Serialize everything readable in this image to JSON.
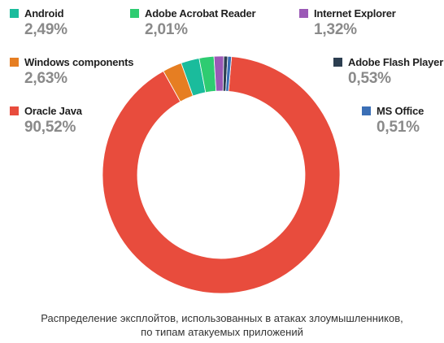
{
  "chart_data": {
    "type": "pie",
    "donut": true,
    "categories": [
      "Oracle Java",
      "Windows components",
      "Android",
      "Adobe Acrobat Reader",
      "Internet Explorer",
      "Adobe Flash Player",
      "MS Office"
    ],
    "values": [
      90.52,
      2.63,
      2.49,
      2.01,
      1.32,
      0.53,
      0.51
    ],
    "value_labels": [
      "90,52%",
      "2,63%",
      "2,49%",
      "2,01%",
      "1,32%",
      "0,53%",
      "0,51%"
    ],
    "colors": [
      "#e84c3d",
      "#e67e22",
      "#1abc9c",
      "#2ecc71",
      "#9b59b6",
      "#2c3e50",
      "#3b6fb6"
    ],
    "legend_placement": "around"
  },
  "caption": {
    "line1": "Распределение эксплойтов, использованных в атаках злоумышленников,",
    "line2": "по типам атакуемых приложений"
  }
}
